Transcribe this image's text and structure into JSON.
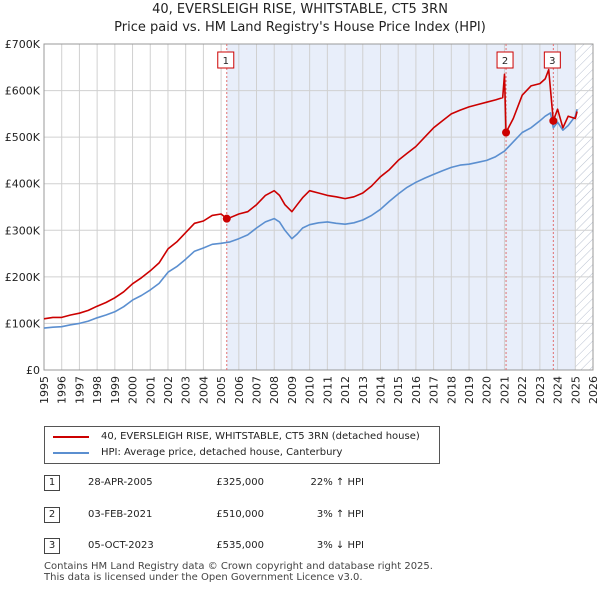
{
  "title": "40, EVERSLEIGH RISE, WHITSTABLE, CT5 3RN",
  "subtitle": "Price paid vs. HM Land Registry's House Price Index (HPI)",
  "legend": {
    "property_label": "40, EVERSLEIGH RISE, WHITSTABLE, CT5 3RN (detached house)",
    "hpi_label": "HPI: Average price, detached house, Canterbury"
  },
  "colors": {
    "property": "#cc0000",
    "hpi": "#5b8fd0",
    "shade": "#e8eefa",
    "grid": "#d0d0d0",
    "hatch": "#b8c0d0"
  },
  "sales": [
    {
      "num": "1",
      "date": "28-APR-2005",
      "price": "£325,000",
      "hpi": "22% ↑ HPI"
    },
    {
      "num": "2",
      "date": "03-FEB-2021",
      "price": "£510,000",
      "hpi": "3% ↑ HPI"
    },
    {
      "num": "3",
      "date": "05-OCT-2023",
      "price": "£535,000",
      "hpi": "3% ↓ HPI"
    }
  ],
  "footer": {
    "line1": "Contains HM Land Registry data © Crown copyright and database right 2025.",
    "line2": "This data is licensed under the Open Government Licence v3.0."
  },
  "chart_data": {
    "type": "line",
    "title": "40, EVERSLEIGH RISE, WHITSTABLE, CT5 3RN",
    "xlabel": "",
    "ylabel": "",
    "xlim": [
      1995,
      2026
    ],
    "ylim": [
      0,
      700000
    ],
    "y_ticks": [
      {
        "value": 0,
        "label": "£0"
      },
      {
        "value": 100000,
        "label": "£100K"
      },
      {
        "value": 200000,
        "label": "£200K"
      },
      {
        "value": 300000,
        "label": "£300K"
      },
      {
        "value": 400000,
        "label": "£400K"
      },
      {
        "value": 500000,
        "label": "£500K"
      },
      {
        "value": 600000,
        "label": "£600K"
      },
      {
        "value": 700000,
        "label": "£700K"
      }
    ],
    "x_ticks": [
      1995,
      1996,
      1997,
      1998,
      1999,
      2000,
      2001,
      2002,
      2003,
      2004,
      2005,
      2006,
      2007,
      2008,
      2009,
      2010,
      2011,
      2012,
      2013,
      2014,
      2015,
      2016,
      2017,
      2018,
      2019,
      2020,
      2021,
      2022,
      2023,
      2024,
      2025,
      2026
    ],
    "shaded_range": [
      2005.32,
      2025.0
    ],
    "future_hatch_from": 2025.0,
    "sale_markers": [
      {
        "label": "1",
        "x": 2005.32,
        "y": 325000
      },
      {
        "label": "2",
        "x": 2021.09,
        "y": 510000
      },
      {
        "label": "3",
        "x": 2023.76,
        "y": 535000
      }
    ],
    "series": [
      {
        "name": "40, EVERSLEIGH RISE, WHITSTABLE, CT5 3RN (detached house)",
        "color": "#cc0000",
        "x": [
          1995,
          1995.5,
          1996,
          1996.5,
          1997,
          1997.5,
          1998,
          1998.5,
          1999,
          1999.5,
          2000,
          2000.5,
          2001,
          2001.5,
          2002,
          2002.5,
          2003,
          2003.5,
          2004,
          2004.5,
          2005,
          2005.32,
          2005.5,
          2006,
          2006.5,
          2007,
          2007.5,
          2008,
          2008.3,
          2008.6,
          2009,
          2009.3,
          2009.6,
          2010,
          2010.5,
          2011,
          2011.5,
          2012,
          2012.5,
          2013,
          2013.5,
          2014,
          2014.5,
          2015,
          2015.5,
          2016,
          2016.5,
          2017,
          2017.5,
          2018,
          2018.5,
          2019,
          2019.5,
          2020,
          2020.5,
          2020.9,
          2021.0,
          2021.09,
          2021.5,
          2022,
          2022.5,
          2023,
          2023.3,
          2023.5,
          2023.76,
          2024,
          2024.3,
          2024.6,
          2025,
          2025.1
        ],
        "values": [
          110000,
          113000,
          113000,
          118000,
          122000,
          128000,
          137000,
          145000,
          155000,
          168000,
          185000,
          198000,
          213000,
          230000,
          260000,
          275000,
          295000,
          315000,
          320000,
          332000,
          335000,
          325000,
          327000,
          335000,
          340000,
          355000,
          375000,
          385000,
          375000,
          355000,
          340000,
          355000,
          370000,
          385000,
          380000,
          375000,
          372000,
          368000,
          372000,
          380000,
          395000,
          415000,
          430000,
          450000,
          465000,
          480000,
          500000,
          520000,
          535000,
          550000,
          558000,
          565000,
          570000,
          575000,
          580000,
          585000,
          635000,
          510000,
          540000,
          590000,
          610000,
          615000,
          625000,
          645000,
          535000,
          560000,
          520000,
          545000,
          540000,
          555000
        ]
      },
      {
        "name": "HPI: Average price, detached house, Canterbury",
        "color": "#5b8fd0",
        "x": [
          1995,
          1995.5,
          1996,
          1996.5,
          1997,
          1997.5,
          1998,
          1998.5,
          1999,
          1999.5,
          2000,
          2000.5,
          2001,
          2001.5,
          2002,
          2002.5,
          2003,
          2003.5,
          2004,
          2004.5,
          2005,
          2005.5,
          2006,
          2006.5,
          2007,
          2007.5,
          2008,
          2008.3,
          2008.6,
          2009,
          2009.3,
          2009.6,
          2010,
          2010.5,
          2011,
          2011.5,
          2012,
          2012.5,
          2013,
          2013.5,
          2014,
          2014.5,
          2015,
          2015.5,
          2016,
          2016.5,
          2017,
          2017.5,
          2018,
          2018.5,
          2019,
          2019.5,
          2020,
          2020.5,
          2021,
          2021.5,
          2022,
          2022.5,
          2023,
          2023.3,
          2023.6,
          2023.76,
          2024,
          2024.3,
          2024.6,
          2025,
          2025.1
        ],
        "values": [
          90000,
          92000,
          93000,
          97000,
          100000,
          105000,
          112000,
          118000,
          125000,
          136000,
          150000,
          160000,
          172000,
          186000,
          210000,
          222000,
          238000,
          255000,
          262000,
          270000,
          272000,
          275000,
          282000,
          290000,
          305000,
          318000,
          325000,
          318000,
          300000,
          282000,
          292000,
          305000,
          312000,
          316000,
          318000,
          315000,
          313000,
          316000,
          322000,
          332000,
          345000,
          362000,
          378000,
          392000,
          403000,
          412000,
          420000,
          428000,
          435000,
          440000,
          442000,
          446000,
          450000,
          458000,
          470000,
          490000,
          510000,
          520000,
          535000,
          545000,
          552000,
          520000,
          532000,
          515000,
          525000,
          545000,
          560000
        ]
      }
    ]
  }
}
